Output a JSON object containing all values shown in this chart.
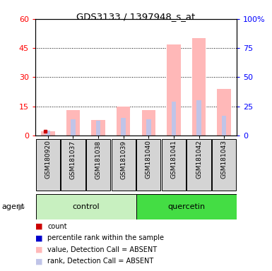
{
  "title": "GDS3133 / 1397948_s_at",
  "samples": [
    "GSM180920",
    "GSM181037",
    "GSM181038",
    "GSM181039",
    "GSM181040",
    "GSM181041",
    "GSM181042",
    "GSM181043"
  ],
  "absent_value": [
    2,
    13,
    8,
    15,
    13,
    47,
    50,
    24
  ],
  "absent_rank": [
    4,
    14,
    13,
    15,
    14,
    29,
    30,
    17
  ],
  "count_values": [
    2,
    0,
    0,
    0,
    0,
    0,
    0,
    0
  ],
  "rank_values": [
    0,
    0,
    0,
    0,
    0,
    0,
    0,
    0
  ],
  "ylim_left": [
    0,
    60
  ],
  "ylim_right": [
    0,
    100
  ],
  "yticks_left": [
    0,
    15,
    30,
    45,
    60
  ],
  "yticks_right": [
    0,
    25,
    50,
    75,
    100
  ],
  "ytick_labels_left": [
    "0",
    "15",
    "30",
    "45",
    "60"
  ],
  "ytick_labels_right": [
    "0",
    "25",
    "50",
    "75",
    "100%"
  ],
  "bar_absent_value_color": "#ffb8b8",
  "bar_absent_rank_color": "#c0c4e8",
  "bar_count_color": "#cc0000",
  "bar_rank_color": "#0000cc",
  "control_bg": "#c8f0c0",
  "quercetin_bg": "#44dd44",
  "sample_box_bg": "#d4d4d4",
  "legend_items": [
    {
      "label": "count",
      "color": "#cc0000"
    },
    {
      "label": "percentile rank within the sample",
      "color": "#0000cc"
    },
    {
      "label": "value, Detection Call = ABSENT",
      "color": "#ffb8b8"
    },
    {
      "label": "rank, Detection Call = ABSENT",
      "color": "#c0c4e8"
    }
  ]
}
